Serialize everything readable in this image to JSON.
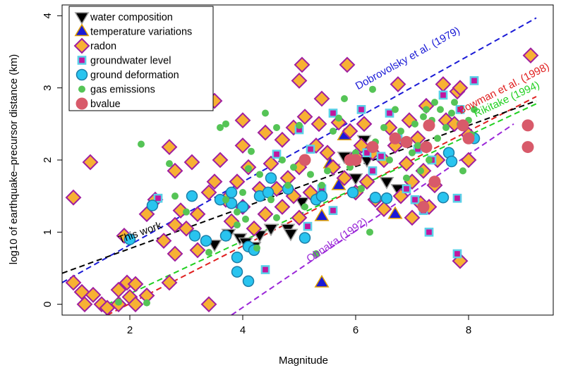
{
  "chart_data": {
    "type": "scatter",
    "xlabel": "Magnitude",
    "ylabel": "log10 of earthquake–precursor distance (km)",
    "xlim": [
      0.8,
      9.5
    ],
    "ylim": [
      -0.15,
      4.15
    ],
    "x_ticks": [
      2,
      4,
      6,
      8
    ],
    "y_ticks": [
      0,
      1,
      2,
      3,
      4
    ],
    "x_tick_labels": [
      "2",
      "4",
      "6",
      "8"
    ],
    "y_tick_labels": [
      "0",
      "1",
      "2",
      "3",
      "4"
    ],
    "grid": false,
    "legend_position": "top-left",
    "series": [
      {
        "name": "water composition",
        "marker": "triangle-down",
        "fill": "#000000",
        "stroke": "#9e9e9e",
        "points": [
          [
            3.5,
            0.83
          ],
          [
            3.75,
            0.98
          ],
          [
            3.95,
            0.92
          ],
          [
            4.05,
            0.86
          ],
          [
            4.3,
            0.96
          ],
          [
            4.5,
            1.05
          ],
          [
            4.8,
            1.05
          ],
          [
            4.85,
            0.98
          ],
          [
            5.05,
            1.42
          ],
          [
            5.6,
            1.88
          ],
          [
            6.0,
            1.75
          ],
          [
            6.15,
            2.28
          ],
          [
            6.55,
            1.7
          ],
          [
            6.75,
            1.6
          ],
          [
            6.2,
            2.0
          ],
          [
            4.2,
            0.8
          ],
          [
            5.8,
            2.05
          ]
        ]
      },
      {
        "name": "temperature variations",
        "marker": "triangle-up",
        "fill": "#1a1ad6",
        "stroke": "#e0a000",
        "points": [
          [
            5.4,
            0.3
          ],
          [
            5.4,
            1.22
          ],
          [
            5.8,
            2.34
          ],
          [
            6.7,
            1.25
          ],
          [
            5.55,
            1.95
          ],
          [
            5.95,
            2.0
          ],
          [
            5.7,
            1.65
          ]
        ]
      },
      {
        "name": "radon",
        "marker": "diamond",
        "fill": "#f7b133",
        "stroke": "#a01ea0",
        "points": [
          [
            1.0,
            1.48
          ],
          [
            1.0,
            0.3
          ],
          [
            1.15,
            0.17
          ],
          [
            1.3,
            1.97
          ],
          [
            1.2,
            0.0
          ],
          [
            1.35,
            0.13
          ],
          [
            1.5,
            0.0
          ],
          [
            1.6,
            -0.05
          ],
          [
            1.8,
            0.0
          ],
          [
            1.8,
            0.2
          ],
          [
            1.9,
            0.95
          ],
          [
            1.95,
            0.3
          ],
          [
            2.0,
            0.1
          ],
          [
            2.1,
            0.28
          ],
          [
            2.1,
            0.0
          ],
          [
            2.3,
            0.12
          ],
          [
            2.3,
            1.25
          ],
          [
            2.45,
            1.45
          ],
          [
            2.6,
            0.88
          ],
          [
            2.7,
            2.18
          ],
          [
            2.7,
            0.3
          ],
          [
            2.8,
            1.85
          ],
          [
            2.8,
            1.1
          ],
          [
            2.8,
            0.7
          ],
          [
            2.9,
            1.3
          ],
          [
            3.0,
            1.05
          ],
          [
            3.1,
            1.97
          ],
          [
            3.2,
            1.25
          ],
          [
            3.2,
            0.75
          ],
          [
            3.4,
            0.0
          ],
          [
            3.4,
            1.55
          ],
          [
            3.5,
            2.82
          ],
          [
            3.5,
            1.7
          ],
          [
            3.6,
            2.0
          ],
          [
            3.7,
            1.45
          ],
          [
            3.8,
            1.15
          ],
          [
            3.9,
            1.7
          ],
          [
            4.0,
            1.35
          ],
          [
            4.0,
            2.2
          ],
          [
            4.0,
            2.55
          ],
          [
            4.1,
            1.9
          ],
          [
            4.2,
            1.05
          ],
          [
            4.3,
            1.6
          ],
          [
            4.4,
            1.25
          ],
          [
            4.4,
            2.38
          ],
          [
            4.5,
            1.95
          ],
          [
            4.6,
            1.6
          ],
          [
            4.7,
            1.35
          ],
          [
            4.7,
            2.28
          ],
          [
            4.8,
            1.75
          ],
          [
            4.9,
            1.5
          ],
          [
            4.9,
            2.45
          ],
          [
            5.0,
            1.2
          ],
          [
            5.0,
            1.9
          ],
          [
            5.0,
            3.1
          ],
          [
            5.05,
            3.32
          ],
          [
            5.1,
            2.6
          ],
          [
            5.2,
            1.55
          ],
          [
            5.3,
            2.2
          ],
          [
            5.35,
            2.5
          ],
          [
            5.4,
            2.85
          ],
          [
            5.5,
            2.1
          ],
          [
            5.6,
            1.9
          ],
          [
            5.7,
            2.52
          ],
          [
            5.8,
            1.75
          ],
          [
            5.85,
            3.32
          ],
          [
            5.9,
            2.4
          ],
          [
            6.0,
            1.55
          ],
          [
            6.0,
            2.05
          ],
          [
            6.1,
            2.2
          ],
          [
            6.15,
            2.5
          ],
          [
            6.2,
            1.7
          ],
          [
            6.3,
            2.1
          ],
          [
            6.35,
            1.45
          ],
          [
            6.5,
            1.32
          ],
          [
            6.5,
            2.0
          ],
          [
            6.6,
            2.45
          ],
          [
            6.7,
            2.2
          ],
          [
            6.75,
            3.05
          ],
          [
            6.8,
            1.5
          ],
          [
            6.9,
            1.95
          ],
          [
            6.95,
            2.55
          ],
          [
            7.0,
            1.2
          ],
          [
            7.0,
            1.7
          ],
          [
            7.1,
            2.3
          ],
          [
            7.15,
            1.4
          ],
          [
            7.2,
            1.85
          ],
          [
            7.25,
            2.75
          ],
          [
            7.3,
            1.35
          ],
          [
            7.4,
            1.65
          ],
          [
            7.45,
            2.0
          ],
          [
            7.55,
            3.05
          ],
          [
            7.6,
            2.55
          ],
          [
            7.75,
            2.5
          ],
          [
            7.8,
            2.95
          ],
          [
            7.85,
            3.0
          ],
          [
            7.85,
            0.6
          ],
          [
            8.0,
            2.0
          ],
          [
            8.0,
            2.35
          ],
          [
            9.1,
            3.45
          ]
        ]
      },
      {
        "name": "groundwater level",
        "marker": "square",
        "fill": "#c2169e",
        "stroke": "#5ad0e8",
        "points": [
          [
            2.5,
            1.47
          ],
          [
            4.4,
            0.48
          ],
          [
            4.6,
            2.08
          ],
          [
            5.0,
            2.42
          ],
          [
            5.15,
            1.08
          ],
          [
            5.2,
            2.15
          ],
          [
            5.6,
            1.3
          ],
          [
            5.6,
            2.65
          ],
          [
            6.1,
            2.7
          ],
          [
            6.3,
            1.85
          ],
          [
            6.45,
            2.05
          ],
          [
            6.6,
            2.65
          ],
          [
            6.75,
            2.3
          ],
          [
            6.9,
            1.6
          ],
          [
            7.05,
            1.45
          ],
          [
            7.1,
            2.15
          ],
          [
            7.2,
            1.3
          ],
          [
            7.3,
            1.0
          ],
          [
            7.35,
            2.0
          ],
          [
            7.55,
            2.9
          ],
          [
            7.8,
            0.7
          ],
          [
            7.8,
            1.47
          ],
          [
            7.85,
            2.7
          ],
          [
            8.1,
            3.1
          ],
          [
            6.2,
            2.1
          ],
          [
            5.4,
            1.6
          ]
        ]
      },
      {
        "name": "ground deformation",
        "marker": "circle",
        "fill": "#29c4ef",
        "stroke": "#1b7ea8",
        "points": [
          [
            2.0,
            0.9
          ],
          [
            2.4,
            1.37
          ],
          [
            3.1,
            1.5
          ],
          [
            3.15,
            0.95
          ],
          [
            3.35,
            0.88
          ],
          [
            3.6,
            1.45
          ],
          [
            3.7,
            0.95
          ],
          [
            3.8,
            1.55
          ],
          [
            3.8,
            1.4
          ],
          [
            3.9,
            0.65
          ],
          [
            3.9,
            0.45
          ],
          [
            4.1,
            0.32
          ],
          [
            4.1,
            0.8
          ],
          [
            4.2,
            0.75
          ],
          [
            4.0,
            1.35
          ],
          [
            4.3,
            1.5
          ],
          [
            4.45,
            1.55
          ],
          [
            4.5,
            1.75
          ],
          [
            4.8,
            1.6
          ],
          [
            5.1,
            0.92
          ],
          [
            5.3,
            1.45
          ],
          [
            5.4,
            1.5
          ],
          [
            5.95,
            1.55
          ],
          [
            6.35,
            1.48
          ],
          [
            6.55,
            1.47
          ],
          [
            7.55,
            1.48
          ],
          [
            7.65,
            2.1
          ],
          [
            7.7,
            1.98
          ],
          [
            8.1,
            2.3
          ]
        ]
      },
      {
        "name": "gas emissions",
        "marker": "circle",
        "fill": "#55c456",
        "stroke": "#55c456",
        "points": [
          [
            1.8,
            0.03
          ],
          [
            2.2,
            2.22
          ],
          [
            2.3,
            0.02
          ],
          [
            2.7,
            1.95
          ],
          [
            2.8,
            1.5
          ],
          [
            3.0,
            1.28
          ],
          [
            3.4,
            0.72
          ],
          [
            3.6,
            2.45
          ],
          [
            3.7,
            2.5
          ],
          [
            3.7,
            1.45
          ],
          [
            3.9,
            1.28
          ],
          [
            3.9,
            1.1
          ],
          [
            4.0,
            1.55
          ],
          [
            4.05,
            1.18
          ],
          [
            4.1,
            1.88
          ],
          [
            4.15,
            2.12
          ],
          [
            4.25,
            0.78
          ],
          [
            4.3,
            1.8
          ],
          [
            4.4,
            2.65
          ],
          [
            4.5,
            1.45
          ],
          [
            4.6,
            2.45
          ],
          [
            4.6,
            1.2
          ],
          [
            4.7,
            2.0
          ],
          [
            4.8,
            1.65
          ],
          [
            4.9,
            1.9
          ],
          [
            5.0,
            2.48
          ],
          [
            5.1,
            1.35
          ],
          [
            5.2,
            1.8
          ],
          [
            5.3,
            0.7
          ],
          [
            5.4,
            1.65
          ],
          [
            5.5,
            1.85
          ],
          [
            5.6,
            2.4
          ],
          [
            5.7,
            2.58
          ],
          [
            5.8,
            2.85
          ],
          [
            5.9,
            1.9
          ],
          [
            6.0,
            2.1
          ],
          [
            6.1,
            1.6
          ],
          [
            6.25,
            1.0
          ],
          [
            6.3,
            2.98
          ],
          [
            6.35,
            2.25
          ],
          [
            6.5,
            2.45
          ],
          [
            6.6,
            2.0
          ],
          [
            6.7,
            2.7
          ],
          [
            6.8,
            2.4
          ],
          [
            6.9,
            1.75
          ],
          [
            7.0,
            2.1
          ],
          [
            7.05,
            2.5
          ],
          [
            7.1,
            2.2
          ],
          [
            7.15,
            1.85
          ],
          [
            7.2,
            2.6
          ],
          [
            7.25,
            2.7
          ],
          [
            7.3,
            2.0
          ],
          [
            7.35,
            2.55
          ],
          [
            7.4,
            2.8
          ],
          [
            7.45,
            2.3
          ],
          [
            7.5,
            2.7
          ],
          [
            7.6,
            2.45
          ],
          [
            7.7,
            2.65
          ],
          [
            7.75,
            2.8
          ],
          [
            7.85,
            2.5
          ],
          [
            7.9,
            1.85
          ],
          [
            8.0,
            2.55
          ],
          [
            8.05,
            2.35
          ],
          [
            8.1,
            2.7
          ]
        ]
      },
      {
        "name": "bvalue",
        "marker": "circle",
        "fill": "#d85a6a",
        "stroke": "#d85a6a",
        "points": [
          [
            5.1,
            2.0
          ],
          [
            6.0,
            2.0
          ],
          [
            6.3,
            2.18
          ],
          [
            6.7,
            2.3
          ],
          [
            6.9,
            2.25
          ],
          [
            7.2,
            1.35
          ],
          [
            7.25,
            2.18
          ],
          [
            7.3,
            2.48
          ],
          [
            7.4,
            1.7
          ],
          [
            7.9,
            2.48
          ],
          [
            8.0,
            2.3
          ],
          [
            9.05,
            2.48
          ],
          [
            9.05,
            2.18
          ],
          [
            5.9,
            2.0
          ]
        ]
      }
    ],
    "lines": [
      {
        "label": "Dobrovolsky et al. (1979)",
        "color": "#1a1ad6",
        "x": [
          0.8,
          9.2
        ],
        "y": [
          0.3,
          3.97
        ]
      },
      {
        "label": "Bowman et al. (1998)",
        "color": "#e02020",
        "x": [
          1.6,
          9.2
        ],
        "y": [
          -0.15,
          2.88
        ]
      },
      {
        "label": "Rikitake (1994)",
        "color": "#22d022",
        "x": [
          1.6,
          9.2
        ],
        "y": [
          0.0,
          2.78
        ]
      },
      {
        "label": "Ohnaka (1992)",
        "color": "#9a26d8",
        "x": [
          3.8,
          8.8
        ],
        "y": [
          -0.15,
          2.5
        ]
      },
      {
        "label": "This work",
        "color": "#000000",
        "x": [
          0.8,
          9.2
        ],
        "y": [
          0.43,
          2.82
        ]
      }
    ]
  }
}
